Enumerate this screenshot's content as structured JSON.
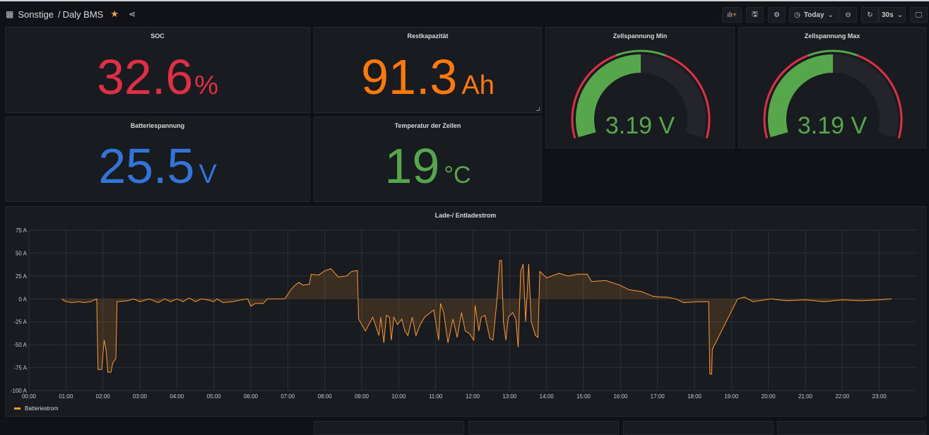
{
  "header": {
    "folder": "Sonstige",
    "separator": "/",
    "title": "Daly BMS",
    "starred": true,
    "time_range": "Today",
    "refresh": "30s",
    "icons": [
      "dashboard-grid-icon",
      "star-icon",
      "share-icon",
      "add-panel-icon",
      "save-icon",
      "settings-icon",
      "clock-icon",
      "zoom-out-icon",
      "refresh-icon",
      "tv-mode-icon"
    ]
  },
  "colors": {
    "red": "#e02f44",
    "orange": "#ff780a",
    "blue": "#3274d9",
    "green": "#56a64b",
    "series": "#ff9830"
  },
  "panels": {
    "soc": {
      "title": "SOC",
      "value": "32.6",
      "unit": "%",
      "color": "#e02f44"
    },
    "rest": {
      "title": "Restkapazität",
      "value": "91.3",
      "unit": "Ah",
      "color": "#ff780a"
    },
    "volt": {
      "title": "Batteriespannung",
      "value": "25.5",
      "unit": "V",
      "color": "#3274d9"
    },
    "temp": {
      "title": "Temperatur der Zellen",
      "value": "19",
      "unit": "°C",
      "color": "#56a64b"
    },
    "gmin": {
      "title": "Zellspannung Min",
      "value": "3.19 V",
      "fill_fraction": 0.5,
      "threshold_fractions": [
        0.4,
        0.6
      ]
    },
    "gmax": {
      "title": "Zellspannung Max",
      "value": "3.19 V",
      "fill_fraction": 0.5,
      "threshold_fractions": [
        0.4,
        0.6
      ]
    }
  },
  "chart_data": {
    "type": "line",
    "title": "Lade-/ Entladestrom",
    "fill": true,
    "grid": true,
    "legend_position": "bottom-left",
    "xlim": [
      "00:00",
      "24:00"
    ],
    "ylim": [
      -100,
      75
    ],
    "x_ticks": [
      "00:00",
      "01:00",
      "02:00",
      "03:00",
      "04:00",
      "05:00",
      "06:00",
      "07:00",
      "08:00",
      "09:00",
      "10:00",
      "11:00",
      "12:00",
      "13:00",
      "14:00",
      "15:00",
      "16:00",
      "17:00",
      "18:00",
      "19:00",
      "20:00",
      "21:00",
      "22:00",
      "23:00"
    ],
    "y_ticks": [
      "75 A",
      "50 A",
      "25 A",
      "0 A",
      "-25 A",
      "-50 A",
      "-75 A",
      "-100 A"
    ],
    "y_tick_values": [
      75,
      50,
      25,
      0,
      -25,
      -50,
      -75,
      -100
    ],
    "series": [
      {
        "name": "Batteriestrom",
        "color": "#ff9830",
        "points": [
          [
            "00:53",
            0
          ],
          [
            "01:00",
            -3
          ],
          [
            "01:10",
            -4
          ],
          [
            "01:20",
            -3
          ],
          [
            "01:30",
            -4
          ],
          [
            "01:40",
            -3
          ],
          [
            "01:50",
            0
          ],
          [
            "01:52",
            -77
          ],
          [
            "01:58",
            -77
          ],
          [
            "02:02",
            -45
          ],
          [
            "02:05",
            -55
          ],
          [
            "02:08",
            -80
          ],
          [
            "02:13",
            -80
          ],
          [
            "02:16",
            -70
          ],
          [
            "02:21",
            -65
          ],
          [
            "02:23",
            -3
          ],
          [
            "02:40",
            -2
          ],
          [
            "02:50",
            0
          ],
          [
            "03:00",
            -3
          ],
          [
            "03:15",
            0
          ],
          [
            "03:30",
            -4
          ],
          [
            "03:40",
            0
          ],
          [
            "03:50",
            -3
          ],
          [
            "04:00",
            0
          ],
          [
            "04:10",
            -3
          ],
          [
            "04:20",
            1
          ],
          [
            "04:30",
            -3
          ],
          [
            "04:40",
            0
          ],
          [
            "04:50",
            -1
          ],
          [
            "05:00",
            -3
          ],
          [
            "05:05",
            0
          ],
          [
            "05:15",
            -4
          ],
          [
            "05:30",
            -3
          ],
          [
            "05:45",
            -1
          ],
          [
            "05:55",
            0
          ],
          [
            "06:00",
            -8
          ],
          [
            "06:07",
            -5
          ],
          [
            "06:20",
            -5
          ],
          [
            "06:27",
            0
          ],
          [
            "06:55",
            0
          ],
          [
            "07:00",
            5
          ],
          [
            "07:05",
            10
          ],
          [
            "07:12",
            15
          ],
          [
            "07:18",
            18
          ],
          [
            "07:25",
            15
          ],
          [
            "07:35",
            16
          ],
          [
            "07:38",
            27
          ],
          [
            "07:50",
            26
          ],
          [
            "08:01",
            31
          ],
          [
            "08:10",
            33
          ],
          [
            "08:22",
            24
          ],
          [
            "08:35",
            25
          ],
          [
            "08:44",
            30
          ],
          [
            "08:53",
            31
          ],
          [
            "08:55",
            -22
          ],
          [
            "09:06",
            -35
          ],
          [
            "09:18",
            -20
          ],
          [
            "09:28",
            -40
          ],
          [
            "09:31",
            -20
          ],
          [
            "09:36",
            -48
          ],
          [
            "09:40",
            -18
          ],
          [
            "09:45",
            -20
          ],
          [
            "09:48",
            -45
          ],
          [
            "09:52",
            -20
          ],
          [
            "09:58",
            -28
          ],
          [
            "10:05",
            -22
          ],
          [
            "10:10",
            -35
          ],
          [
            "10:15",
            -40
          ],
          [
            "10:22",
            -20
          ],
          [
            "10:28",
            -40
          ],
          [
            "10:35",
            -28
          ],
          [
            "10:42",
            -20
          ],
          [
            "10:57",
            -12
          ],
          [
            "11:05",
            -45
          ],
          [
            "11:08",
            -5
          ],
          [
            "11:13",
            -15
          ],
          [
            "11:20",
            -48
          ],
          [
            "11:28",
            -22
          ],
          [
            "11:35",
            -42
          ],
          [
            "11:42",
            -15
          ],
          [
            "11:48",
            -35
          ],
          [
            "11:55",
            -38
          ],
          [
            "12:02",
            -45
          ],
          [
            "12:04",
            -7
          ],
          [
            "12:10",
            -35
          ],
          [
            "12:14",
            -20
          ],
          [
            "12:20",
            -18
          ],
          [
            "12:28",
            -43
          ],
          [
            "12:33",
            -45
          ],
          [
            "12:39",
            -5
          ],
          [
            "12:44",
            42
          ],
          [
            "12:47",
            42
          ],
          [
            "12:50",
            -25
          ],
          [
            "12:54",
            -45
          ],
          [
            "12:58",
            -20
          ],
          [
            "13:05",
            -15
          ],
          [
            "13:10",
            -22
          ],
          [
            "13:14",
            -53
          ],
          [
            "13:18",
            30
          ],
          [
            "13:22",
            38
          ],
          [
            "13:26",
            -25
          ],
          [
            "13:31",
            38
          ],
          [
            "13:35",
            -25
          ],
          [
            "13:42",
            -40
          ],
          [
            "13:46",
            -42
          ],
          [
            "13:49",
            30
          ],
          [
            "14:00",
            23
          ],
          [
            "14:20",
            28
          ],
          [
            "14:35",
            25
          ],
          [
            "14:50",
            27
          ],
          [
            "15:06",
            27
          ],
          [
            "15:13",
            19
          ],
          [
            "15:36",
            20
          ],
          [
            "15:59",
            15
          ],
          [
            "16:14",
            10
          ],
          [
            "16:34",
            8
          ],
          [
            "16:52",
            3
          ],
          [
            "17:05",
            2
          ],
          [
            "17:15",
            2
          ],
          [
            "17:30",
            0
          ],
          [
            "17:42",
            -4
          ],
          [
            "18:09",
            -3
          ],
          [
            "18:23",
            -3
          ],
          [
            "18:25",
            -82
          ],
          [
            "18:28",
            -82
          ],
          [
            "18:29",
            -55
          ],
          [
            "19:10",
            0
          ],
          [
            "19:21",
            2
          ],
          [
            "19:35",
            -3
          ],
          [
            "20:04",
            0
          ],
          [
            "20:30",
            -2
          ],
          [
            "21:00",
            -1
          ],
          [
            "21:30",
            -3
          ],
          [
            "22:00",
            -1
          ],
          [
            "22:30",
            -2
          ],
          [
            "23:00",
            -1
          ],
          [
            "23:20",
            0
          ]
        ]
      }
    ]
  }
}
